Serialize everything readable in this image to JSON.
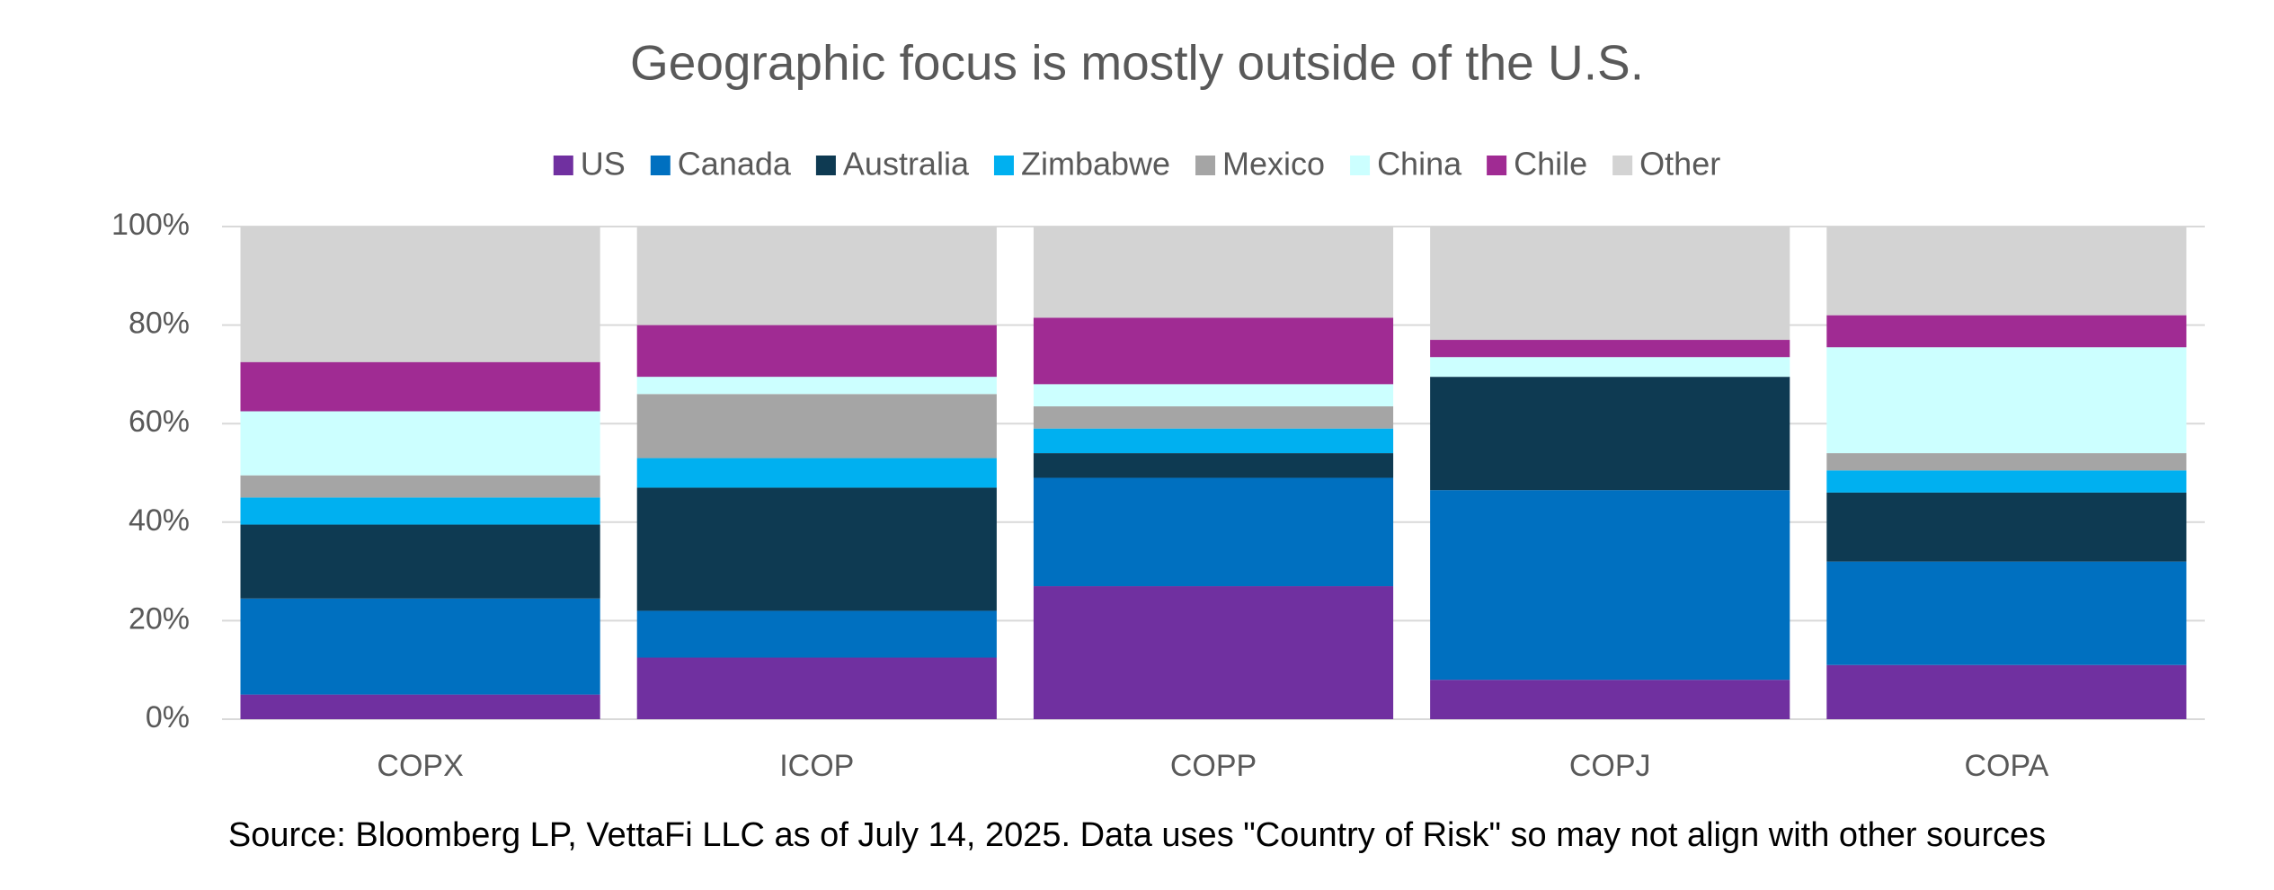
{
  "chart_data": {
    "type": "stacked_bar",
    "title": "Geographic focus is mostly outside of the U.S.",
    "source": "Source: Bloomberg LP, VettaFi LLC as of July 14, 2025. Data uses \"Country of Risk\" so may not align with other sources",
    "categories": [
      "COPX",
      "ICOP",
      "COPP",
      "COPJ",
      "COPA"
    ],
    "series": [
      {
        "name": "US",
        "color": "#7030a0",
        "values": [
          5,
          12.5,
          27,
          8,
          11
        ]
      },
      {
        "name": "Canada",
        "color": "#0070c0",
        "values": [
          19.5,
          9.5,
          22,
          38.5,
          21
        ]
      },
      {
        "name": "Australia",
        "color": "#0e3a52",
        "values": [
          15,
          25,
          5,
          23,
          14
        ]
      },
      {
        "name": "Zimbabwe",
        "color": "#00b0f0",
        "values": [
          5.5,
          6,
          5,
          0,
          4.5
        ]
      },
      {
        "name": "Mexico",
        "color": "#a5a5a5",
        "values": [
          4.5,
          13,
          4.5,
          0,
          3.5
        ]
      },
      {
        "name": "China",
        "color": "#ccffff",
        "values": [
          13,
          3.5,
          4.5,
          4,
          21.5
        ]
      },
      {
        "name": "Chile",
        "color": "#a02b93",
        "values": [
          10,
          10.5,
          13.5,
          3.5,
          6.5
        ]
      },
      {
        "name": "Other",
        "color": "#d3d3d3",
        "values": [
          27.5,
          20,
          18.5,
          23,
          18
        ]
      }
    ],
    "ylim": [
      0,
      100
    ],
    "yticks": [
      {
        "value": 0,
        "label": "0%"
      },
      {
        "value": 20,
        "label": "20%"
      },
      {
        "value": 40,
        "label": "40%"
      },
      {
        "value": 60,
        "label": "60%"
      },
      {
        "value": 80,
        "label": "80%"
      },
      {
        "value": 100,
        "label": "100%"
      }
    ],
    "grid": true,
    "legend": "top"
  }
}
